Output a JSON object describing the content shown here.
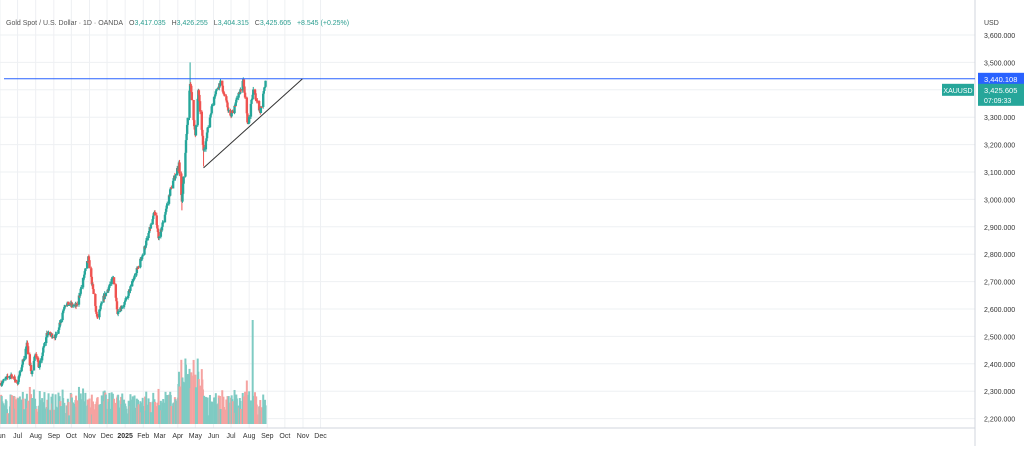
{
  "legend": {
    "symbol": "Gold Spot / U.S. Dollar · 1D · OANDA",
    "o_label": "O",
    "o": "3,417.035",
    "h_label": "H",
    "h": "3,426.255",
    "l_label": "L",
    "l": "3,404.315",
    "c_label": "C",
    "c": "3,425.605",
    "change": "+8.545 (+0.25%)"
  },
  "axis_currency": "USD",
  "price_tag": {
    "symbol": "XAUUSD",
    "price": "3,425.605",
    "countdown": "07:09:33",
    "line_level": "3,440.108",
    "line_value": 3440.108
  },
  "colors": {
    "up": "#26a69a",
    "down": "#ef5350",
    "vol_up": "#7fcbc3",
    "vol_down": "#f5a3a1",
    "resistance_line": "#2962ff",
    "trend_line": "#333333",
    "grid": "#eef0f3",
    "price_tag": "#26a69a",
    "level_tag": "#2962ff"
  },
  "chart_data": {
    "type": "candlestick",
    "title": "Gold Spot / U.S. Dollar · 1D · OANDA",
    "y_ticks": [
      2200,
      2300,
      2400,
      2500,
      2600,
      2700,
      2800,
      2900,
      3000,
      3100,
      3200,
      3300,
      3400,
      3500,
      3600
    ],
    "y_tick_labels": [
      "2,200.000",
      "2,300.000",
      "2,400.000",
      "2,500.000",
      "2,600.000",
      "2,700.000",
      "2,800.000",
      "2,900.000",
      "3,000.000",
      "3,100.000",
      "3,200.000",
      "3,300.000",
      "3,400.000",
      "3,500.000",
      "3,600.000"
    ],
    "ylim": [
      2200,
      3650
    ],
    "x_labels": [
      "Jun",
      "Jul",
      "Aug",
      "Sep",
      "Oct",
      "Nov",
      "Dec",
      "2025",
      "Feb",
      "Mar",
      "Apr",
      "May",
      "Jun",
      "Jul",
      "Aug",
      "Sep",
      "Oct",
      "Nov",
      "Dec"
    ],
    "x_label_dates": [
      "2024-06",
      "2024-07",
      "2024-08",
      "2024-09",
      "2024-10",
      "2024-11",
      "2024-12",
      "2025-01",
      "2025-02",
      "2025-03",
      "2025-04",
      "2025-05",
      "2025-06",
      "2025-07",
      "2025-08",
      "2025-09",
      "2025-10",
      "2025-11",
      "2025-12"
    ],
    "grid": true,
    "anchors": [
      {
        "date": "2024-06-03",
        "price": 2330
      },
      {
        "date": "2024-06-20",
        "price": 2360
      },
      {
        "date": "2024-07-01",
        "price": 2330
      },
      {
        "date": "2024-07-17",
        "price": 2470
      },
      {
        "date": "2024-07-25",
        "price": 2365
      },
      {
        "date": "2024-08-01",
        "price": 2440
      },
      {
        "date": "2024-08-07",
        "price": 2385
      },
      {
        "date": "2024-08-20",
        "price": 2510
      },
      {
        "date": "2024-09-05",
        "price": 2500
      },
      {
        "date": "2024-09-20",
        "price": 2620
      },
      {
        "date": "2024-10-10",
        "price": 2610
      },
      {
        "date": "2024-10-30",
        "price": 2785
      },
      {
        "date": "2024-11-14",
        "price": 2565
      },
      {
        "date": "2024-11-25",
        "price": 2640
      },
      {
        "date": "2024-12-12",
        "price": 2715
      },
      {
        "date": "2024-12-19",
        "price": 2590
      },
      {
        "date": "2025-01-01",
        "price": 2625
      },
      {
        "date": "2025-01-31",
        "price": 2800
      },
      {
        "date": "2025-02-20",
        "price": 2950
      },
      {
        "date": "2025-02-28",
        "price": 2855
      },
      {
        "date": "2025-03-20",
        "price": 3040
      },
      {
        "date": "2025-04-03",
        "price": 3130
      },
      {
        "date": "2025-04-08",
        "price": 2985
      },
      {
        "date": "2025-04-22",
        "price": 3430
      },
      {
        "date": "2025-05-01",
        "price": 3230
      },
      {
        "date": "2025-05-06",
        "price": 3400
      },
      {
        "date": "2025-05-15",
        "price": 3175
      },
      {
        "date": "2025-06-02",
        "price": 3380
      },
      {
        "date": "2025-06-13",
        "price": 3430
      },
      {
        "date": "2025-06-30",
        "price": 3300
      },
      {
        "date": "2025-07-22",
        "price": 3430
      },
      {
        "date": "2025-07-30",
        "price": 3270
      },
      {
        "date": "2025-08-08",
        "price": 3400
      },
      {
        "date": "2025-08-20",
        "price": 3320
      },
      {
        "date": "2025-08-29",
        "price": 3425
      }
    ],
    "spikes": [
      {
        "date": "2025-04-22",
        "high": 3500
      },
      {
        "date": "2025-04-08",
        "low": 2960
      },
      {
        "date": "2025-05-15",
        "low": 3120
      }
    ],
    "volume_spike": {
      "date": "2025-08-07"
    },
    "horizontal_line": {
      "price": 3440.108
    },
    "trend_line": {
      "from": {
        "date": "2025-05-15",
        "price": 3115
      },
      "to": {
        "date": "2025-10-31",
        "price": 3440
      }
    }
  }
}
